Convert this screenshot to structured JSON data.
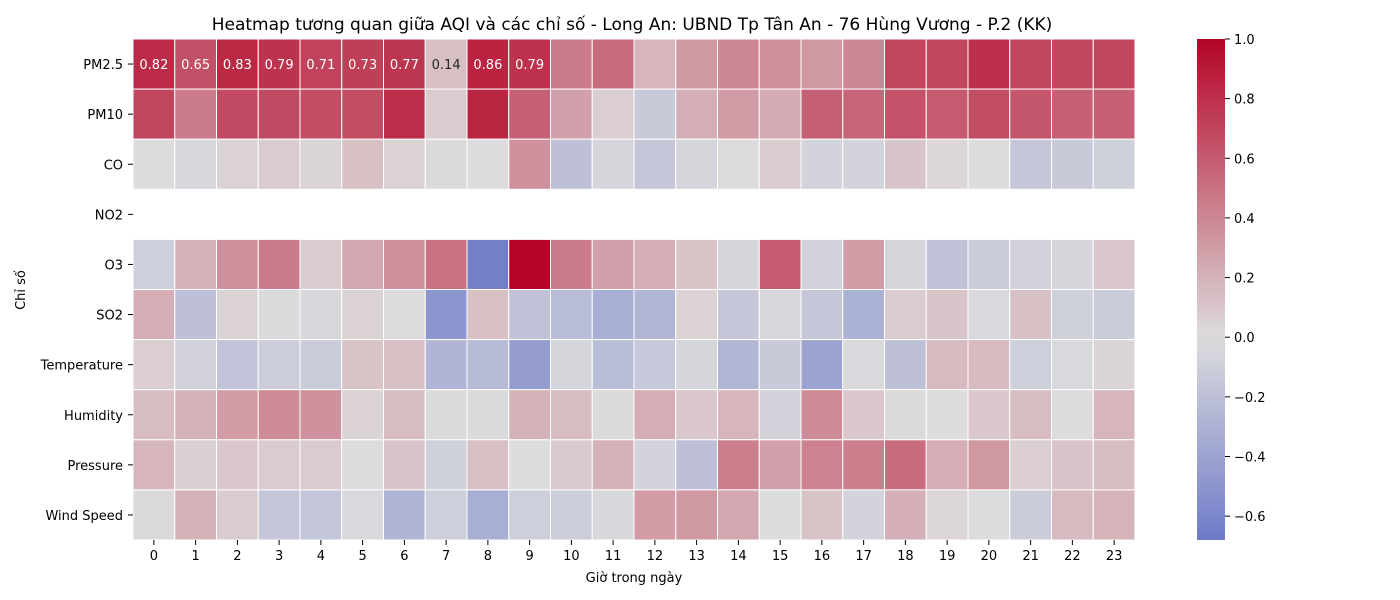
{
  "chart_data": {
    "type": "heatmap",
    "title": "Heatmap tương quan giữa AQI và các chỉ số - Long An: UBND Tp Tân An - 76 Hùng Vương - P.2 (KK)",
    "xlabel": "Giờ trong ngày",
    "ylabel": "Chỉ số",
    "x": [
      "0",
      "1",
      "2",
      "3",
      "4",
      "5",
      "6",
      "7",
      "8",
      "9",
      "10",
      "11",
      "12",
      "13",
      "14",
      "15",
      "16",
      "17",
      "18",
      "19",
      "20",
      "21",
      "22",
      "23"
    ],
    "y": [
      "PM2.5",
      "PM10",
      "CO",
      "NO2",
      "O3",
      "SO2",
      "Temperature",
      "Humidity",
      "Pressure",
      "Wind Speed"
    ],
    "values": [
      [
        0.82,
        0.65,
        0.83,
        0.79,
        0.71,
        0.73,
        0.77,
        0.14,
        0.86,
        0.79,
        0.45,
        0.52,
        0.18,
        0.32,
        0.4,
        0.36,
        0.32,
        0.4,
        0.7,
        0.69,
        0.8,
        0.7,
        0.7,
        0.7
      ],
      [
        0.7,
        0.45,
        0.68,
        0.68,
        0.66,
        0.66,
        0.81,
        0.08,
        0.85,
        0.58,
        0.28,
        0.07,
        -0.13,
        0.22,
        0.3,
        0.23,
        0.58,
        0.55,
        0.64,
        0.6,
        0.66,
        0.62,
        0.57,
        0.57
      ],
      [
        0.01,
        -0.04,
        0.05,
        0.08,
        0.04,
        0.13,
        0.05,
        0.02,
        0.01,
        0.35,
        -0.2,
        -0.05,
        -0.15,
        -0.05,
        0.01,
        0.08,
        -0.07,
        -0.06,
        0.11,
        0.03,
        0.0,
        -0.15,
        -0.13,
        -0.09
      ],
      [
        null,
        null,
        null,
        null,
        null,
        null,
        null,
        null,
        null,
        null,
        null,
        null,
        null,
        null,
        null,
        null,
        null,
        null,
        null,
        null,
        null,
        null,
        null,
        null
      ],
      [
        -0.1,
        0.2,
        0.35,
        0.45,
        0.08,
        0.25,
        0.35,
        0.5,
        -0.65,
        1.0,
        0.45,
        0.28,
        0.22,
        0.12,
        -0.05,
        0.6,
        -0.08,
        0.3,
        -0.05,
        -0.18,
        -0.12,
        -0.08,
        -0.05,
        0.1
      ],
      [
        0.22,
        -0.2,
        0.05,
        -0.02,
        -0.04,
        0.05,
        0.01,
        -0.5,
        0.13,
        -0.18,
        -0.23,
        -0.32,
        -0.27,
        0.05,
        -0.15,
        -0.04,
        -0.15,
        -0.3,
        0.08,
        0.11,
        -0.03,
        0.13,
        -0.09,
        -0.12
      ],
      [
        0.07,
        -0.08,
        -0.17,
        -0.11,
        -0.12,
        0.12,
        0.14,
        -0.28,
        -0.24,
        -0.45,
        -0.05,
        -0.22,
        -0.14,
        -0.05,
        -0.27,
        -0.13,
        -0.4,
        -0.03,
        -0.2,
        0.16,
        0.16,
        -0.1,
        -0.03,
        0.04
      ],
      [
        0.15,
        0.2,
        0.3,
        0.38,
        0.35,
        0.05,
        0.15,
        -0.02,
        -0.02,
        0.2,
        0.15,
        0.02,
        0.22,
        0.1,
        0.18,
        -0.07,
        0.38,
        0.1,
        -0.02,
        0.0,
        0.1,
        0.15,
        0.01,
        0.18
      ],
      [
        0.18,
        0.06,
        0.1,
        0.08,
        0.08,
        -0.01,
        0.11,
        -0.09,
        0.14,
        0.0,
        0.09,
        0.2,
        -0.06,
        -0.2,
        0.44,
        0.28,
        0.42,
        0.44,
        0.52,
        0.22,
        0.32,
        0.07,
        0.11,
        0.15
      ],
      [
        0.02,
        0.2,
        0.08,
        -0.15,
        -0.16,
        -0.03,
        -0.28,
        -0.1,
        -0.32,
        -0.1,
        -0.11,
        -0.04,
        0.3,
        0.32,
        0.25,
        -0.01,
        0.12,
        -0.06,
        0.21,
        0.03,
        -0.01,
        -0.12,
        0.16,
        0.19
      ]
    ],
    "annotated_row": "PM2.5",
    "annotated_labels": [
      "0.82",
      "0.65",
      "0.83",
      "0.79",
      "0.71",
      "0.73",
      "0.77",
      "0.14",
      "0.86",
      "0.79"
    ],
    "colorbar": {
      "vmin": -0.68,
      "vmax": 1.0,
      "ticks": [
        "1.0",
        "0.8",
        "0.6",
        "0.4",
        "0.2",
        "0.0",
        "−0.2",
        "−0.4",
        "−0.6"
      ],
      "tick_values": [
        1.0,
        0.8,
        0.6,
        0.4,
        0.2,
        0.0,
        -0.2,
        -0.4,
        -0.6
      ],
      "colormap": "coolwarm",
      "cmap_stops": [
        "#3b4cc0",
        "#dddddd",
        "#b40426"
      ]
    },
    "grid": false
  }
}
